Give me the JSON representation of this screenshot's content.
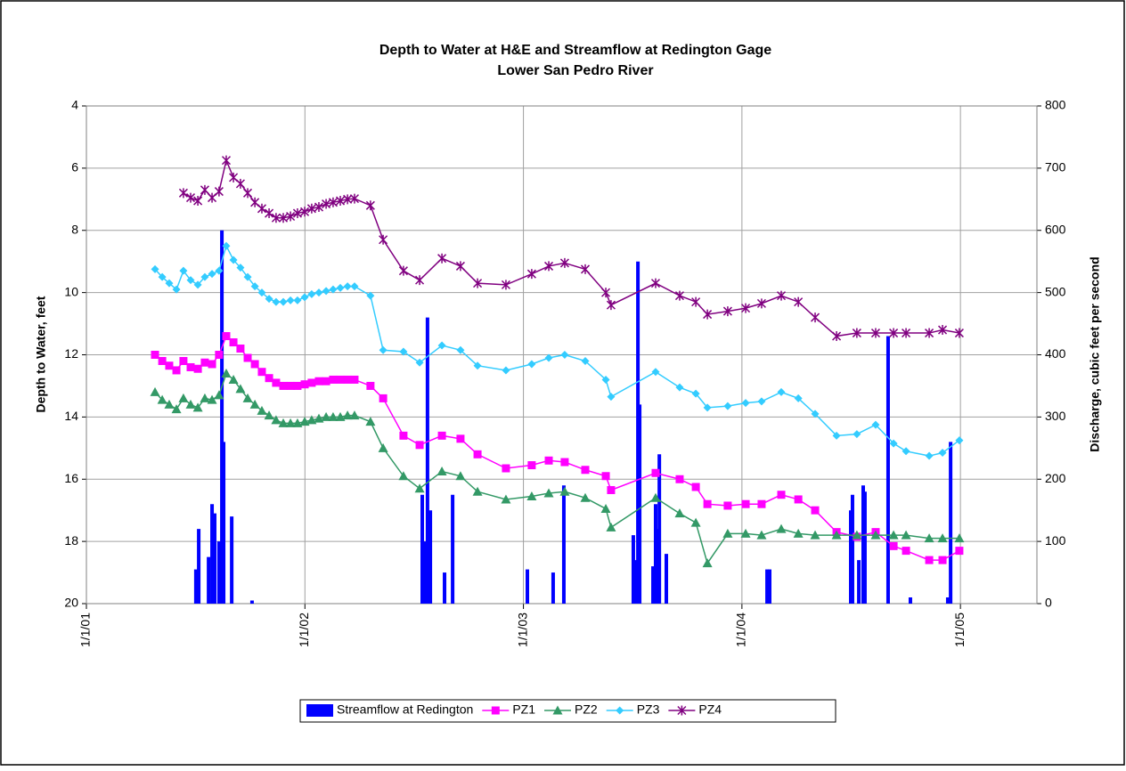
{
  "chart_data": {
    "type": "line",
    "title": "Depth to Water at H&E and Streamflow at Redington Gage",
    "subtitle": "Lower San Pedro River",
    "ylabel": "Depth to Water, feet",
    "y2label": "Discharge, cubic feet per second",
    "ylim": [
      4,
      20
    ],
    "y_inverted": true,
    "yticks": [
      4,
      6,
      8,
      10,
      12,
      14,
      16,
      18,
      20
    ],
    "y2lim": [
      0,
      800
    ],
    "y2ticks": [
      0,
      100,
      200,
      300,
      400,
      500,
      600,
      700,
      800
    ],
    "xlim": [
      2001,
      2005.35
    ],
    "xticks": [
      {
        "value": 2001,
        "label": "1/1/01"
      },
      {
        "value": 2002,
        "label": "1/1/02"
      },
      {
        "value": 2003,
        "label": "1/1/03"
      },
      {
        "value": 2004,
        "label": "1/1/04"
      },
      {
        "value": 2005,
        "label": "1/1/05"
      }
    ],
    "grid": true,
    "legend": "bottom",
    "x": [
      2001.314,
      2001.347,
      2001.379,
      2001.412,
      2001.444,
      2001.477,
      2001.51,
      2001.542,
      2001.575,
      2001.607,
      2001.64,
      2001.673,
      2001.705,
      2001.738,
      2001.771,
      2001.803,
      2001.836,
      2001.868,
      2001.901,
      2001.934,
      2001.966,
      2001.999,
      2002.031,
      2002.064,
      2002.097,
      2002.129,
      2002.162,
      2002.195,
      2002.227,
      2002.3,
      2002.358,
      2002.451,
      2002.525,
      2002.627,
      2002.712,
      2002.79,
      2002.92,
      2003.038,
      2003.116,
      2003.189,
      2003.283,
      2003.377,
      2003.401,
      2003.605,
      2003.715,
      2003.789,
      2003.842,
      2003.935,
      2004.017,
      2004.09,
      2004.18,
      2004.258,
      2004.335,
      2004.433,
      2004.526,
      2004.612,
      2004.694,
      2004.751,
      2004.857,
      2004.918,
      2004.995
    ],
    "series": [
      {
        "name": "Streamflow at Redington",
        "color": "#0000ff",
        "type": "bar",
        "axis": "y2",
        "x": [
          2001.501,
          2001.514,
          2001.559,
          2001.575,
          2001.587,
          2001.607,
          2001.62,
          2001.628,
          2001.665,
          2001.758,
          2002.537,
          2002.549,
          2002.561,
          2002.574,
          2002.639,
          2002.676,
          2003.018,
          2003.136,
          2003.185,
          2003.503,
          2003.515,
          2003.524,
          2003.532,
          2003.593,
          2003.605,
          2003.613,
          2003.622,
          2003.654,
          2004.115,
          2004.127,
          2004.498,
          2004.506,
          2004.535,
          2004.555,
          2004.563,
          2004.669,
          2004.771,
          2004.942,
          2004.955
        ],
        "values": [
          55,
          120,
          75,
          160,
          145,
          100,
          600,
          260,
          140,
          5,
          175,
          100,
          460,
          150,
          50,
          175,
          55,
          50,
          190,
          110,
          70,
          550,
          320,
          60,
          160,
          120,
          240,
          80,
          55,
          55,
          150,
          175,
          70,
          190,
          180,
          430,
          10,
          10,
          260
        ]
      },
      {
        "name": "PZ1",
        "color": "#ff00ff",
        "marker": "square",
        "values": [
          12.0,
          12.2,
          12.35,
          12.5,
          12.2,
          12.4,
          12.45,
          12.25,
          12.3,
          12.0,
          11.4,
          11.6,
          11.8,
          12.1,
          12.3,
          12.55,
          12.75,
          12.9,
          13.0,
          13.0,
          13.0,
          12.95,
          12.9,
          12.85,
          12.85,
          12.8,
          12.8,
          12.8,
          12.8,
          13.0,
          13.4,
          14.6,
          14.9,
          14.6,
          14.7,
          15.2,
          15.65,
          15.55,
          15.4,
          15.45,
          15.7,
          15.9,
          16.35,
          15.8,
          16.0,
          16.25,
          16.8,
          16.85,
          16.8,
          16.8,
          16.5,
          16.65,
          17.0,
          17.7,
          17.85,
          17.7,
          18.15,
          18.3,
          18.6,
          18.6,
          18.3
        ]
      },
      {
        "name": "PZ2",
        "color": "#339966",
        "marker": "triangle",
        "values": [
          13.2,
          13.45,
          13.6,
          13.75,
          13.4,
          13.6,
          13.7,
          13.4,
          13.45,
          13.3,
          12.6,
          12.8,
          13.1,
          13.4,
          13.6,
          13.8,
          13.95,
          14.1,
          14.2,
          14.2,
          14.2,
          14.15,
          14.1,
          14.05,
          14.0,
          14.0,
          14.0,
          13.95,
          13.95,
          14.15,
          15.0,
          15.9,
          16.3,
          15.75,
          15.9,
          16.4,
          16.65,
          16.55,
          16.45,
          16.4,
          16.6,
          16.95,
          17.55,
          16.6,
          17.1,
          17.4,
          18.7,
          17.75,
          17.75,
          17.8,
          17.6,
          17.75,
          17.8,
          17.8,
          17.8,
          17.8,
          17.8,
          17.8,
          17.9,
          17.9,
          17.9
        ]
      },
      {
        "name": "PZ3",
        "color": "#33ccff",
        "marker": "diamond",
        "values": [
          9.25,
          9.5,
          9.7,
          9.9,
          9.3,
          9.6,
          9.75,
          9.5,
          9.4,
          9.3,
          8.5,
          8.95,
          9.2,
          9.5,
          9.8,
          10.0,
          10.2,
          10.3,
          10.3,
          10.25,
          10.25,
          10.15,
          10.05,
          10.0,
          9.95,
          9.9,
          9.85,
          9.8,
          9.8,
          10.1,
          11.85,
          11.9,
          12.25,
          11.7,
          11.85,
          12.35,
          12.5,
          12.3,
          12.1,
          12.0,
          12.2,
          12.8,
          13.35,
          12.55,
          13.05,
          13.25,
          13.7,
          13.65,
          13.55,
          13.5,
          13.2,
          13.4,
          13.9,
          14.6,
          14.55,
          14.25,
          14.85,
          15.1,
          15.25,
          15.15,
          14.75
        ]
      },
      {
        "name": "PZ4",
        "color": "#800080",
        "marker": "star",
        "values": [
          null,
          null,
          null,
          null,
          6.8,
          6.95,
          7.05,
          6.7,
          6.95,
          6.75,
          5.75,
          6.3,
          6.5,
          6.8,
          7.1,
          7.3,
          7.45,
          7.6,
          7.6,
          7.55,
          7.45,
          7.4,
          7.3,
          7.25,
          7.15,
          7.1,
          7.05,
          7.0,
          6.98,
          7.2,
          8.3,
          9.3,
          9.6,
          8.9,
          9.15,
          9.7,
          9.75,
          9.4,
          9.15,
          9.05,
          9.25,
          10.0,
          10.4,
          9.7,
          10.1,
          10.3,
          10.7,
          10.6,
          10.5,
          10.35,
          10.1,
          10.3,
          10.8,
          11.4,
          11.3,
          11.3,
          11.3,
          11.3,
          11.3,
          11.2,
          11.3
        ]
      }
    ]
  }
}
